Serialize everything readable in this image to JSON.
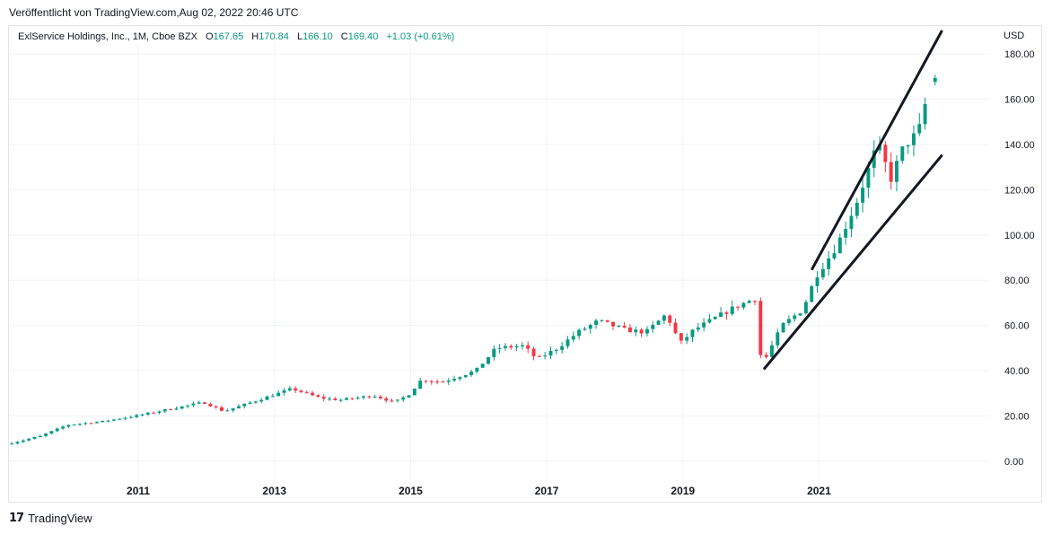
{
  "header": {
    "published": "Veröffentlicht von TradingView.com,Aug 02, 2022 20:46 UTC"
  },
  "legend": {
    "symbol": "ExlService Holdings, Inc., 1M, Cboe BZX",
    "o_label": "O",
    "o_value": "167.65",
    "h_label": "H",
    "h_value": "170.84",
    "l_label": "L",
    "l_value": "166.10",
    "c_label": "C",
    "c_value": "169.40",
    "change": "+1.03 (+0.61%)"
  },
  "footer": {
    "brand": "TradingView",
    "logo_glyph": "17"
  },
  "chart_data": {
    "type": "candlestick",
    "currency": "USD",
    "ylim": [
      -10,
      190
    ],
    "xlim": [
      2009.1,
      2023.5
    ],
    "y_ticks": [
      "180.00",
      "160.00",
      "140.00",
      "120.00",
      "100.00",
      "80.00",
      "60.00",
      "40.00",
      "20.00",
      "0.00"
    ],
    "y_tick_values": [
      180,
      160,
      140,
      120,
      100,
      80,
      60,
      40,
      20,
      0
    ],
    "x_ticks": [
      "2011",
      "2013",
      "2015",
      "2017",
      "2019",
      "2021"
    ],
    "x_tick_values": [
      2011,
      2013,
      2015,
      2017,
      2019,
      2021
    ],
    "grid": true,
    "colors": {
      "up": "#089981",
      "down": "#f23645",
      "trendline": "#131722",
      "grid": "#f0f3fa"
    },
    "anchors": [
      [
        2009.1,
        7.5
      ],
      [
        2009.6,
        11
      ],
      [
        2010.0,
        16
      ],
      [
        2010.5,
        17.5
      ],
      [
        2011.0,
        20
      ],
      [
        2011.5,
        23
      ],
      [
        2012.0,
        26
      ],
      [
        2012.3,
        22
      ],
      [
        2012.6,
        25
      ],
      [
        2013.0,
        29
      ],
      [
        2013.3,
        32
      ],
      [
        2013.7,
        28
      ],
      [
        2014.0,
        27
      ],
      [
        2014.5,
        29
      ],
      [
        2014.8,
        26
      ],
      [
        2015.0,
        29
      ],
      [
        2015.2,
        36
      ],
      [
        2015.5,
        35
      ],
      [
        2015.8,
        38
      ],
      [
        2016.0,
        40
      ],
      [
        2016.3,
        50
      ],
      [
        2016.7,
        51
      ],
      [
        2016.9,
        45
      ],
      [
        2017.2,
        50
      ],
      [
        2017.5,
        57
      ],
      [
        2017.8,
        62
      ],
      [
        2018.2,
        58
      ],
      [
        2018.5,
        57
      ],
      [
        2018.8,
        65
      ],
      [
        2019.0,
        52
      ],
      [
        2019.2,
        58
      ],
      [
        2019.5,
        63
      ],
      [
        2019.8,
        68
      ],
      [
        2020.1,
        72
      ],
      [
        2020.2,
        42
      ],
      [
        2020.5,
        60
      ],
      [
        2020.8,
        67
      ],
      [
        2021.0,
        82
      ],
      [
        2021.3,
        95
      ],
      [
        2021.6,
        115
      ],
      [
        2021.9,
        140
      ],
      [
        2022.1,
        125
      ],
      [
        2022.3,
        140
      ],
      [
        2022.5,
        145
      ],
      [
        2022.7,
        170
      ]
    ],
    "last_candle": {
      "date": "2022-08",
      "open": 167.65,
      "high": 170.84,
      "low": 166.1,
      "close": 169.4
    },
    "annotations": [
      {
        "type": "trendline",
        "from": [
          2020.9,
          85
        ],
        "to": [
          2022.8,
          190
        ]
      },
      {
        "type": "trendline",
        "from": [
          2020.2,
          41
        ],
        "to": [
          2022.8,
          135
        ]
      }
    ]
  }
}
